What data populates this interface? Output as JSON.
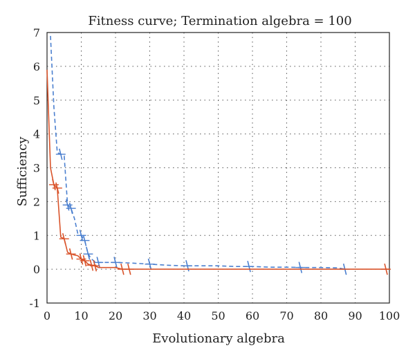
{
  "chart_data": {
    "type": "line",
    "title": "Fitness curve; Termination algebra = 100",
    "xlabel": "Evolutionary algebra",
    "ylabel": "Sufficiency",
    "xlim": [
      0,
      100
    ],
    "ylim": [
      -1,
      7
    ],
    "xticks": [
      0,
      10,
      20,
      30,
      40,
      50,
      60,
      70,
      80,
      90,
      100
    ],
    "yticks": [
      -1,
      0,
      1,
      2,
      3,
      4,
      5,
      6,
      7
    ],
    "grid": true,
    "legend": "none",
    "series": [
      {
        "color": "#4a7fcf",
        "style": "dashed",
        "x": [
          1,
          2,
          3,
          4,
          5,
          6,
          7,
          8,
          9,
          10,
          11,
          12,
          13,
          14,
          15,
          20,
          25,
          30,
          35,
          40,
          45,
          50,
          55,
          60,
          65,
          70,
          75,
          80,
          85,
          87
        ],
        "y": [
          6.9,
          4.8,
          3.45,
          3.4,
          3.35,
          1.9,
          1.8,
          1.5,
          1.05,
          1.0,
          0.85,
          0.45,
          0.3,
          0.22,
          0.2,
          0.2,
          0.18,
          0.15,
          0.12,
          0.1,
          0.1,
          0.1,
          0.08,
          0.08,
          0.06,
          0.06,
          0.05,
          0.05,
          0.04,
          0.0
        ],
        "markers_x": [
          4,
          6,
          7,
          10,
          11,
          12,
          15,
          20,
          30,
          41,
          59,
          74,
          87
        ]
      },
      {
        "color": "#d9532a",
        "style": "solid",
        "x": [
          0,
          1,
          2,
          3,
          4,
          5,
          6,
          7,
          8,
          9,
          10,
          11,
          12,
          13,
          14,
          15,
          20,
          22,
          25,
          30,
          40,
          50,
          60,
          70,
          80,
          90,
          100
        ],
        "y": [
          5.9,
          3.0,
          2.5,
          2.4,
          0.95,
          0.9,
          0.5,
          0.45,
          0.42,
          0.4,
          0.3,
          0.25,
          0.15,
          0.12,
          0.1,
          0.05,
          0.05,
          0.0,
          0.0,
          0.0,
          0.0,
          0.0,
          0.0,
          0.0,
          0.0,
          0.0,
          0.0
        ],
        "markers_x": [
          2,
          3,
          5,
          7,
          10,
          11,
          13,
          14,
          22,
          24,
          99
        ]
      }
    ]
  }
}
